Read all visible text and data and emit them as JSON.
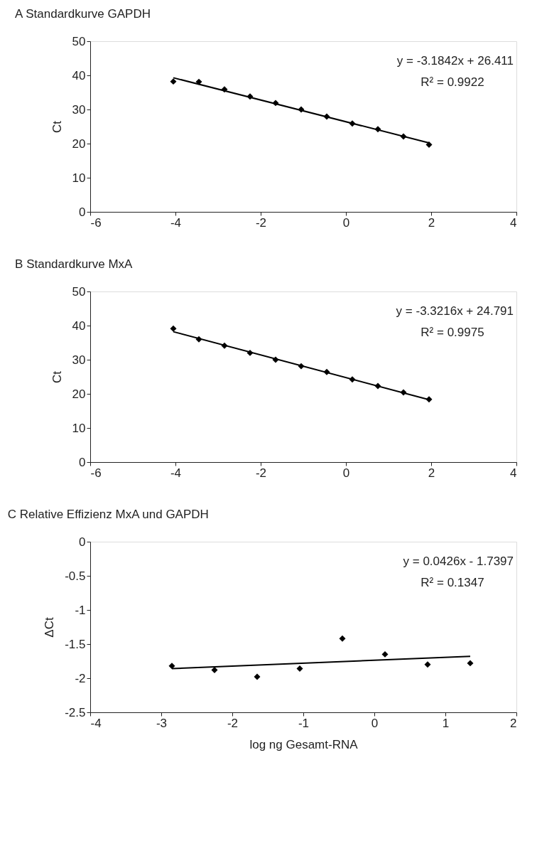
{
  "chart_data": [
    {
      "type": "scatter",
      "title": "A  Standardkurve GAPDH",
      "ylabel": "Ct",
      "xlim": [
        -6,
        4
      ],
      "xticks": [
        -6,
        -4,
        -2,
        0,
        2,
        4
      ],
      "ylim": [
        0,
        50
      ],
      "yticks": [
        0,
        10,
        20,
        30,
        40,
        50
      ],
      "grid": false,
      "legend": false,
      "annotations": [
        "y = -3.1842x + 26.411",
        "R² = 0.9922"
      ],
      "series": [
        {
          "marker": "diamond",
          "color": "#000000",
          "x": [
            -4.05,
            -3.45,
            -2.85,
            -2.25,
            -1.65,
            -1.05,
            -0.45,
            0.15,
            0.75,
            1.35,
            1.95
          ],
          "values": [
            38.2,
            38.1,
            35.9,
            33.8,
            31.9,
            30.0,
            27.9,
            25.9,
            24.2,
            22.1,
            19.7
          ]
        },
        {
          "type": "line",
          "marker": "none",
          "color": "#000000",
          "x": [
            -4.05,
            1.95
          ],
          "values": [
            39.3,
            20.2
          ]
        }
      ]
    },
    {
      "type": "scatter",
      "title": "B  Standardkurve MxA",
      "ylabel": "Ct",
      "xlim": [
        -6,
        4
      ],
      "xticks": [
        -6,
        -4,
        -2,
        0,
        2,
        4
      ],
      "ylim": [
        0,
        50
      ],
      "yticks": [
        0,
        10,
        20,
        30,
        40,
        50
      ],
      "grid": false,
      "legend": false,
      "annotations": [
        "y = -3.3216x + 24.791",
        "R² = 0.9975"
      ],
      "series": [
        {
          "marker": "diamond",
          "color": "#000000",
          "x": [
            -4.05,
            -3.45,
            -2.85,
            -2.25,
            -1.65,
            -1.05,
            -0.45,
            0.15,
            0.75,
            1.35,
            1.95
          ],
          "values": [
            39.1,
            36.0,
            34.1,
            32.0,
            30.0,
            28.1,
            26.4,
            24.2,
            22.3,
            20.4,
            18.4
          ]
        },
        {
          "type": "line",
          "marker": "none",
          "color": "#000000",
          "x": [
            -4.05,
            1.95
          ],
          "values": [
            38.2,
            18.3
          ]
        }
      ]
    },
    {
      "type": "scatter",
      "title": "C   Relative Effizienz MxA und GAPDH",
      "xlabel": "log ng Gesamt-RNA",
      "ylabel": "ΔCt",
      "xlim": [
        -4,
        2
      ],
      "xticks": [
        -4,
        -3,
        -2,
        -1,
        0,
        1,
        2
      ],
      "ylim": [
        -2.5,
        0
      ],
      "yticks": [
        -2.5,
        -2,
        -1.5,
        -1,
        -0.5,
        0
      ],
      "grid": false,
      "legend": false,
      "annotations": [
        "y = 0.0426x - 1.7397",
        "R² = 0.1347"
      ],
      "series": [
        {
          "marker": "diamond",
          "color": "#000000",
          "x": [
            -2.85,
            -2.25,
            -1.65,
            -1.05,
            -0.45,
            0.15,
            0.75,
            1.35
          ],
          "values": [
            -1.82,
            -1.88,
            -1.98,
            -1.86,
            -1.42,
            -1.65,
            -1.8,
            -1.78
          ]
        },
        {
          "type": "line",
          "marker": "none",
          "color": "#000000",
          "x": [
            -2.85,
            1.35
          ],
          "values": [
            -1.86,
            -1.68
          ]
        }
      ]
    }
  ]
}
